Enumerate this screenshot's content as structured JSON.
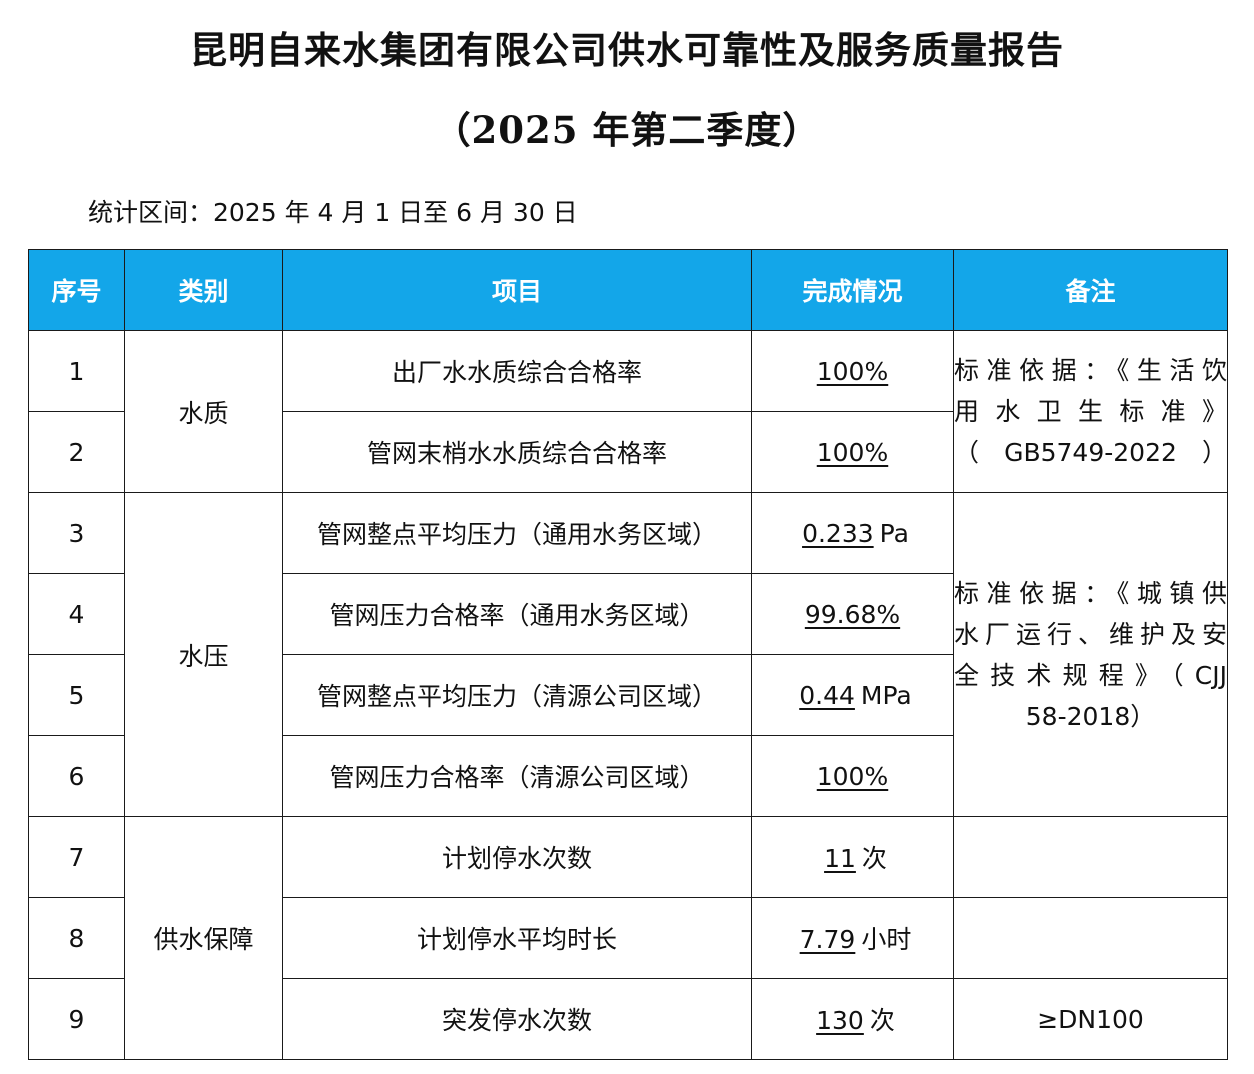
{
  "report": {
    "title_line1": "昆明自来水集团有限公司供水可靠性及服务质量报告",
    "title_line2": "（2025 年第二季度）",
    "period": "统计区间：2025 年 4 月 1 日至 6 月 30 日"
  },
  "table": {
    "headers": [
      "序号",
      "类别",
      "项目",
      "完成情况",
      "备注"
    ],
    "rows": [
      {
        "no": "1",
        "item": "出厂水水质综合合格率",
        "value": "100%",
        "unit": ""
      },
      {
        "no": "2",
        "item": "管网末梢水水质综合合格率",
        "value": "100%",
        "unit": ""
      },
      {
        "no": "3",
        "item": "管网整点平均压力（通用水务区域）",
        "value": "0.233",
        "unit": "Pa"
      },
      {
        "no": "4",
        "item": "管网压力合格率（通用水务区域）",
        "value": "99.68%",
        "unit": ""
      },
      {
        "no": "5",
        "item": "管网整点平均压力（清源公司区域）",
        "value": "0.44",
        "unit": "MPa"
      },
      {
        "no": "6",
        "item": "管网压力合格率（清源公司区域）",
        "value": "100%",
        "unit": ""
      },
      {
        "no": "7",
        "item": "计划停水次数",
        "value": "11",
        "unit": "次"
      },
      {
        "no": "8",
        "item": "计划停水平均时长",
        "value": "7.79",
        "unit": "小时"
      },
      {
        "no": "9",
        "item": "突发停水次数",
        "value": "130",
        "unit": "次"
      }
    ],
    "categories": {
      "water_quality": "水质",
      "water_pressure": "水压",
      "supply_guarantee": "供水保障"
    },
    "notes": {
      "quality_line1": "标准依据：《生活饮",
      "quality_line2": "用 水 卫 生 标 准 》",
      "quality_line3": "（GB5749-2022）",
      "pressure_line1": "标准依据：《城镇供",
      "pressure_line2": "水厂运行、维护及安",
      "pressure_line3": "全技术规程》（CJJ",
      "pressure_line4": "58-2018）",
      "row9": "≥DN100"
    }
  }
}
